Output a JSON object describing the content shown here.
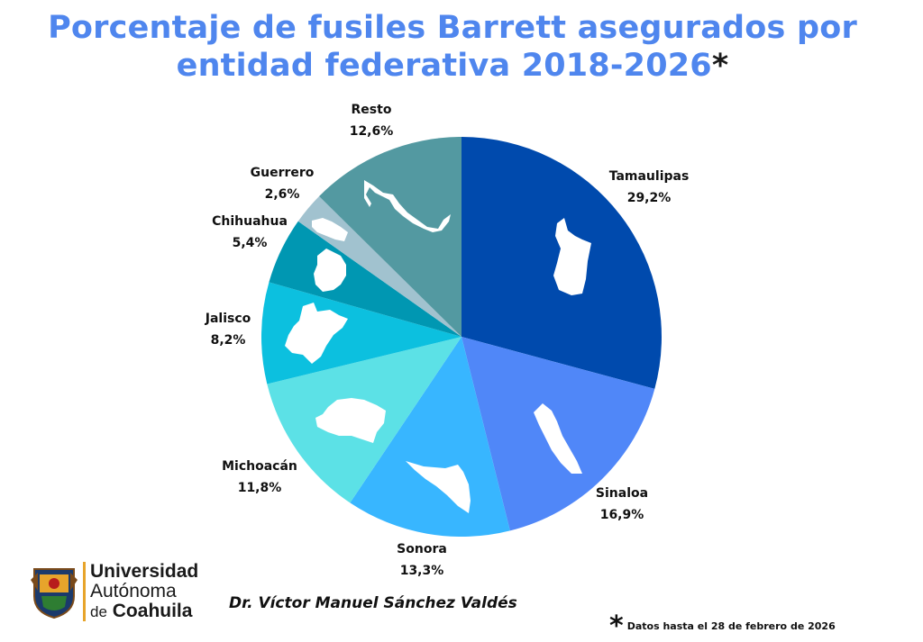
{
  "header": {
    "title_line1": "Porcentaje de fusiles Barrett asegurados por",
    "title_line2": "entidad federativa 2018-2026",
    "title_asterisk": "*"
  },
  "chart_data": {
    "type": "pie",
    "title": "Porcentaje de fusiles Barrett asegurados por entidad federativa 2018-2026*",
    "start": "12 o'clock, clockwise",
    "slices": [
      {
        "name": "Tamaulipas",
        "value": 29.2,
        "label": "29,2%",
        "color": "#004aad"
      },
      {
        "name": "Sinaloa",
        "value": 16.9,
        "label": "16,9%",
        "color": "#5087f8"
      },
      {
        "name": "Sonora",
        "value": 13.3,
        "label": "13,3%",
        "color": "#38b6ff"
      },
      {
        "name": "Michoacán",
        "value": 11.8,
        "label": "11,8%",
        "color": "#5ce1e6"
      },
      {
        "name": "Jalisco",
        "value": 8.2,
        "label": "8,2%",
        "color": "#0cc0df"
      },
      {
        "name": "Chihuahua",
        "value": 5.4,
        "label": "5,4%",
        "color": "#0097b2"
      },
      {
        "name": "Guerrero",
        "value": 2.6,
        "label": "2,6%",
        "color": "#a1c2cf"
      },
      {
        "name": "Resto",
        "value": 12.6,
        "label": "12,6%",
        "color": "#5399a1"
      }
    ]
  },
  "logo": {
    "line1": "Universidad",
    "line2": "Autónoma",
    "line3_small": "de",
    "line3_big": "Coahuila",
    "accent_color": "#e7a42b"
  },
  "author": "Dr. Víctor Manuel Sánchez Valdés",
  "footnote": {
    "star": "*",
    "text": "Datos hasta el 28 de febrero de 2026"
  }
}
